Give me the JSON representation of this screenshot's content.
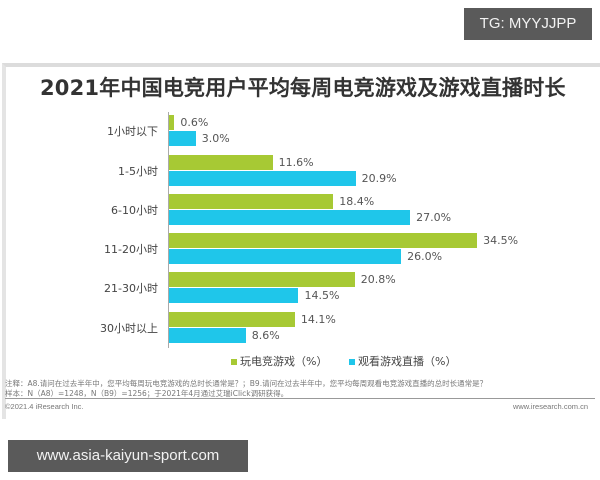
{
  "watermark_top": "TG: MYYJJPP",
  "watermark_bottom": "www.asia-kaiyun-sport.com",
  "chart_data": {
    "type": "bar",
    "orientation": "horizontal",
    "title": "2021年中国电竞用户平均每周电竞游戏及游戏直播时长",
    "categories": [
      "1小时以下",
      "1-5小时",
      "6-10小时",
      "11-20小时",
      "21-30小时",
      "30小时以上"
    ],
    "series": [
      {
        "name": "玩电竞游戏（%）",
        "color": "#a7c934",
        "values": [
          0.6,
          11.6,
          18.4,
          34.5,
          20.8,
          14.1
        ],
        "labels": [
          "0.6%",
          "11.6%",
          "18.4%",
          "34.5%",
          "20.8%",
          "14.1%"
        ]
      },
      {
        "name": "观看游戏直播（%）",
        "color": "#1fc6ea",
        "values": [
          3.0,
          20.9,
          27.0,
          26.0,
          14.5,
          8.6
        ],
        "labels": [
          "3.0%",
          "20.9%",
          "27.0%",
          "26.0%",
          "14.5%",
          "8.6%"
        ]
      }
    ],
    "xlabel": "",
    "ylabel": "",
    "grid": false,
    "legend_position": "bottom"
  },
  "notes": {
    "note1": "注释：A8.请问在过去半年中，您平均每周玩电竞游戏的总时长通常是？；B9.请问在过去半年中，您平均每周观看电竞游戏直播的总时长通常是？",
    "note2": "样本：N（A8）=1248，N（B9）=1256；于2021年4月通过艾瑞iClick调研获得。"
  },
  "footer": {
    "copyright": "©2021.4 iResearch Inc.",
    "website": "www.iresearch.com.cn"
  }
}
